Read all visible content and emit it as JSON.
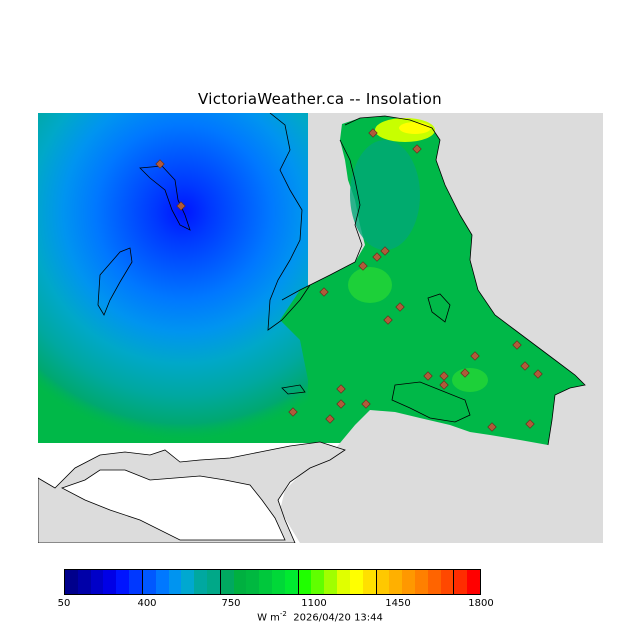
{
  "title": "VictoriaWeather.ca -- Insolation",
  "colors": {
    "background_land": "#dcdcdc",
    "water": "#ffffff",
    "station_marker": "#b05a3a"
  },
  "colorbar": {
    "min": 50,
    "max": 1800,
    "tick_labels": [
      "50",
      "400",
      "750",
      "1100",
      "1450",
      "1800"
    ],
    "colors": [
      "#00008c",
      "#0000a8",
      "#0000c8",
      "#0000e6",
      "#0014ff",
      "#0038ff",
      "#0058ff",
      "#0078ff",
      "#0094f0",
      "#00a8d0",
      "#00a8a0",
      "#00a888",
      "#00a860",
      "#00b040",
      "#00b840",
      "#00c83c",
      "#00d838",
      "#00ea30",
      "#20ff00",
      "#60ff00",
      "#a0ff00",
      "#e0ff00",
      "#ffff00",
      "#ffe000",
      "#ffc800",
      "#ffb000",
      "#ff9800",
      "#ff8000",
      "#ff6400",
      "#ff4800",
      "#ff2c00",
      "#ff0000"
    ],
    "units_base": "W m",
    "units_exp": "-2",
    "timestamp": "2026/04/20 13:44"
  }
}
